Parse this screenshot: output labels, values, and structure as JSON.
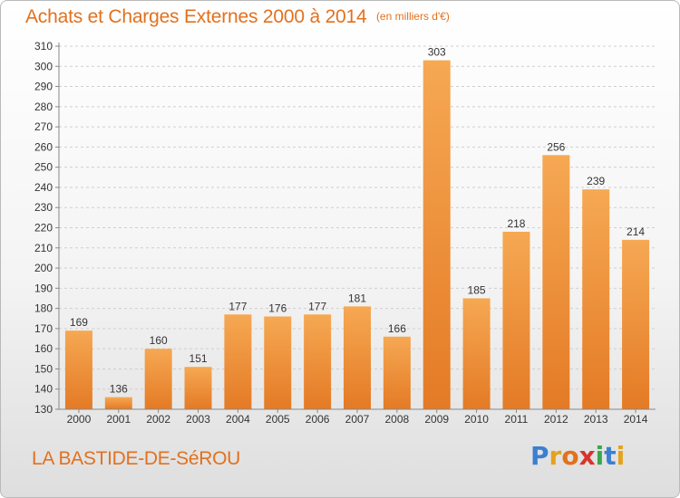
{
  "header": {
    "title": "Achats et Charges Externes 2000 à 2014",
    "unit": "(en milliers d'€)"
  },
  "footer": {
    "commune": "LA BASTIDE-DE-SéROU",
    "logo_letters": [
      "P",
      "r",
      "o",
      "x",
      "i",
      "t",
      "i"
    ],
    "logo_colors": [
      "#3b7fd0",
      "#e6a21a",
      "#e2711d",
      "#d8342a",
      "#3aa84a",
      "#3b7fd0",
      "#e6a21a"
    ]
  },
  "colors": {
    "accent": "#e2711d",
    "bar_light": "#f6a853",
    "bar_dark": "#e47a25"
  },
  "chart_data": {
    "type": "bar",
    "title": "Achats et Charges Externes 2000 à 2014",
    "categories": [
      "2000",
      "2001",
      "2002",
      "2003",
      "2004",
      "2005",
      "2006",
      "2007",
      "2008",
      "2009",
      "2010",
      "2011",
      "2012",
      "2013",
      "2014"
    ],
    "values": [
      169,
      136,
      160,
      151,
      177,
      176,
      177,
      181,
      166,
      303,
      185,
      218,
      256,
      239,
      214
    ],
    "ylim": [
      130,
      310
    ],
    "yticks": [
      130,
      140,
      150,
      160,
      170,
      180,
      190,
      200,
      210,
      220,
      230,
      240,
      250,
      260,
      270,
      280,
      290,
      300,
      310
    ],
    "grid": true,
    "data_labels": true
  }
}
